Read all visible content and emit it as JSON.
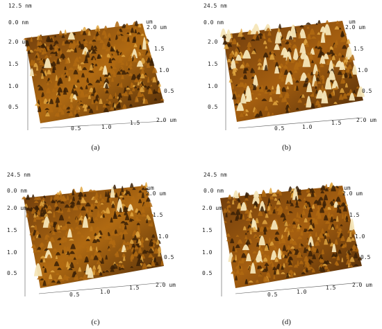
{
  "panels": [
    {
      "caption": "(a)",
      "z_top": "12.5 nm",
      "z_bottom": "0.0 nm",
      "x_unit": "um",
      "x_ticks": [
        "0.5",
        "1.0",
        "1.5",
        "2.0 um"
      ],
      "y_left_ticks": [
        "2.0 um",
        "1.5",
        "1.0",
        "0.5"
      ],
      "y_right_unit": "um",
      "y_right_ticks": [
        "2.0 um",
        "1.5",
        "1.0",
        "0.5"
      ],
      "colors": {
        "dark": "#3a2006",
        "mid": "#b06a12",
        "light": "#f5e6b8"
      }
    },
    {
      "caption": "(b)",
      "z_top": "24.5 nm",
      "z_bottom": "0.0 nm",
      "x_unit": "um",
      "x_ticks": [
        "0.5",
        "1.0",
        "1.5",
        "2.0 um"
      ],
      "y_left_ticks": [
        "2.0",
        "1.5",
        "1.0",
        "0.5"
      ],
      "y_right_unit": "um",
      "y_right_ticks": [
        "2.0 um",
        "1.5",
        "1.0",
        "0.5"
      ],
      "colors": {
        "dark": "#3a2006",
        "mid": "#b06a12",
        "light": "#f5e6b8"
      }
    },
    {
      "caption": "(c)",
      "z_top": "24.5 nm",
      "z_bottom": "0.0 nm",
      "x_unit": "um",
      "x_ticks": [
        "0.5",
        "1.0",
        "1.5",
        "2.0 um"
      ],
      "y_left_ticks": [
        "2.0 um",
        "1.5",
        "1.0",
        "0.5"
      ],
      "y_right_unit": "um",
      "y_right_ticks": [
        "2.0 um",
        "1.5",
        "1.0",
        "0.5"
      ],
      "colors": {
        "dark": "#3a2006",
        "mid": "#b06a12",
        "light": "#f5e6b8"
      }
    },
    {
      "caption": "(d)",
      "z_top": "24.5 nm",
      "z_bottom": "0.0 nm",
      "x_unit": "um",
      "x_ticks": [
        "0.5",
        "1.0",
        "1.5",
        "2.0 um"
      ],
      "y_left_ticks": [
        "2.0 um",
        "1.5",
        "1.0",
        "0.5"
      ],
      "y_right_unit": "um",
      "y_right_ticks": [
        "2.0 um",
        "1.5",
        "1.0",
        "0.5"
      ],
      "colors": {
        "dark": "#3a2006",
        "mid": "#b06a12",
        "light": "#f5e6b8"
      }
    }
  ]
}
